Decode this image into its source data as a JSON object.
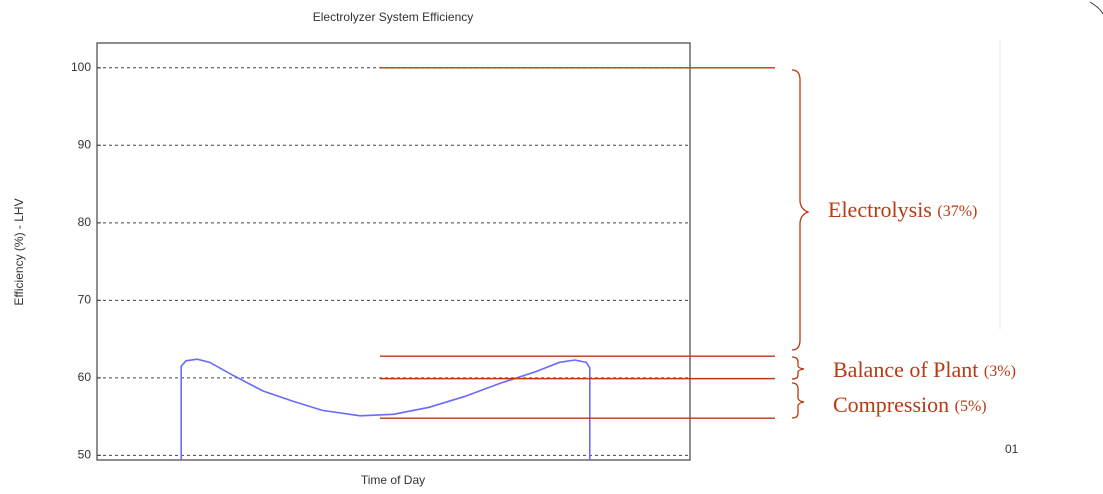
{
  "chart_data": {
    "type": "line",
    "title": "Electrolyzer System Efficiency",
    "x_label": "Time of Day",
    "y_label": "Efficiency (%) - LHV",
    "xlim": [
      0,
      100
    ],
    "ylim": [
      49.4,
      103.2
    ],
    "yticks": [
      50,
      60,
      70,
      80,
      90,
      100
    ],
    "grid": true,
    "series": [
      {
        "color": "#6a6aff",
        "x": [
          14.2,
          14.2,
          15,
          16.9,
          19,
          23,
          28,
          33,
          38,
          44.4,
          50,
          56,
          62,
          68,
          74,
          78,
          80.6,
          82.5,
          83.1,
          83.1
        ],
        "values": [
          49.4,
          61.5,
          62.2,
          62.4,
          62,
          60.3,
          58.3,
          57,
          55.8,
          55.1,
          55.3,
          56.2,
          57.6,
          59.3,
          60.8,
          62,
          62.3,
          62,
          61.3,
          49.4
        ]
      }
    ],
    "reference_lines": {
      "color": "#b83a10",
      "values": [
        100,
        62.8,
        59.9,
        54.8
      ]
    },
    "annotations": [
      {
        "label": "Electrolysis",
        "share": "(37%)"
      },
      {
        "label": "Balance of Plant",
        "share": "(3%)"
      },
      {
        "label": "Compression",
        "share": "(5%)"
      }
    ],
    "corner_text": "01"
  }
}
